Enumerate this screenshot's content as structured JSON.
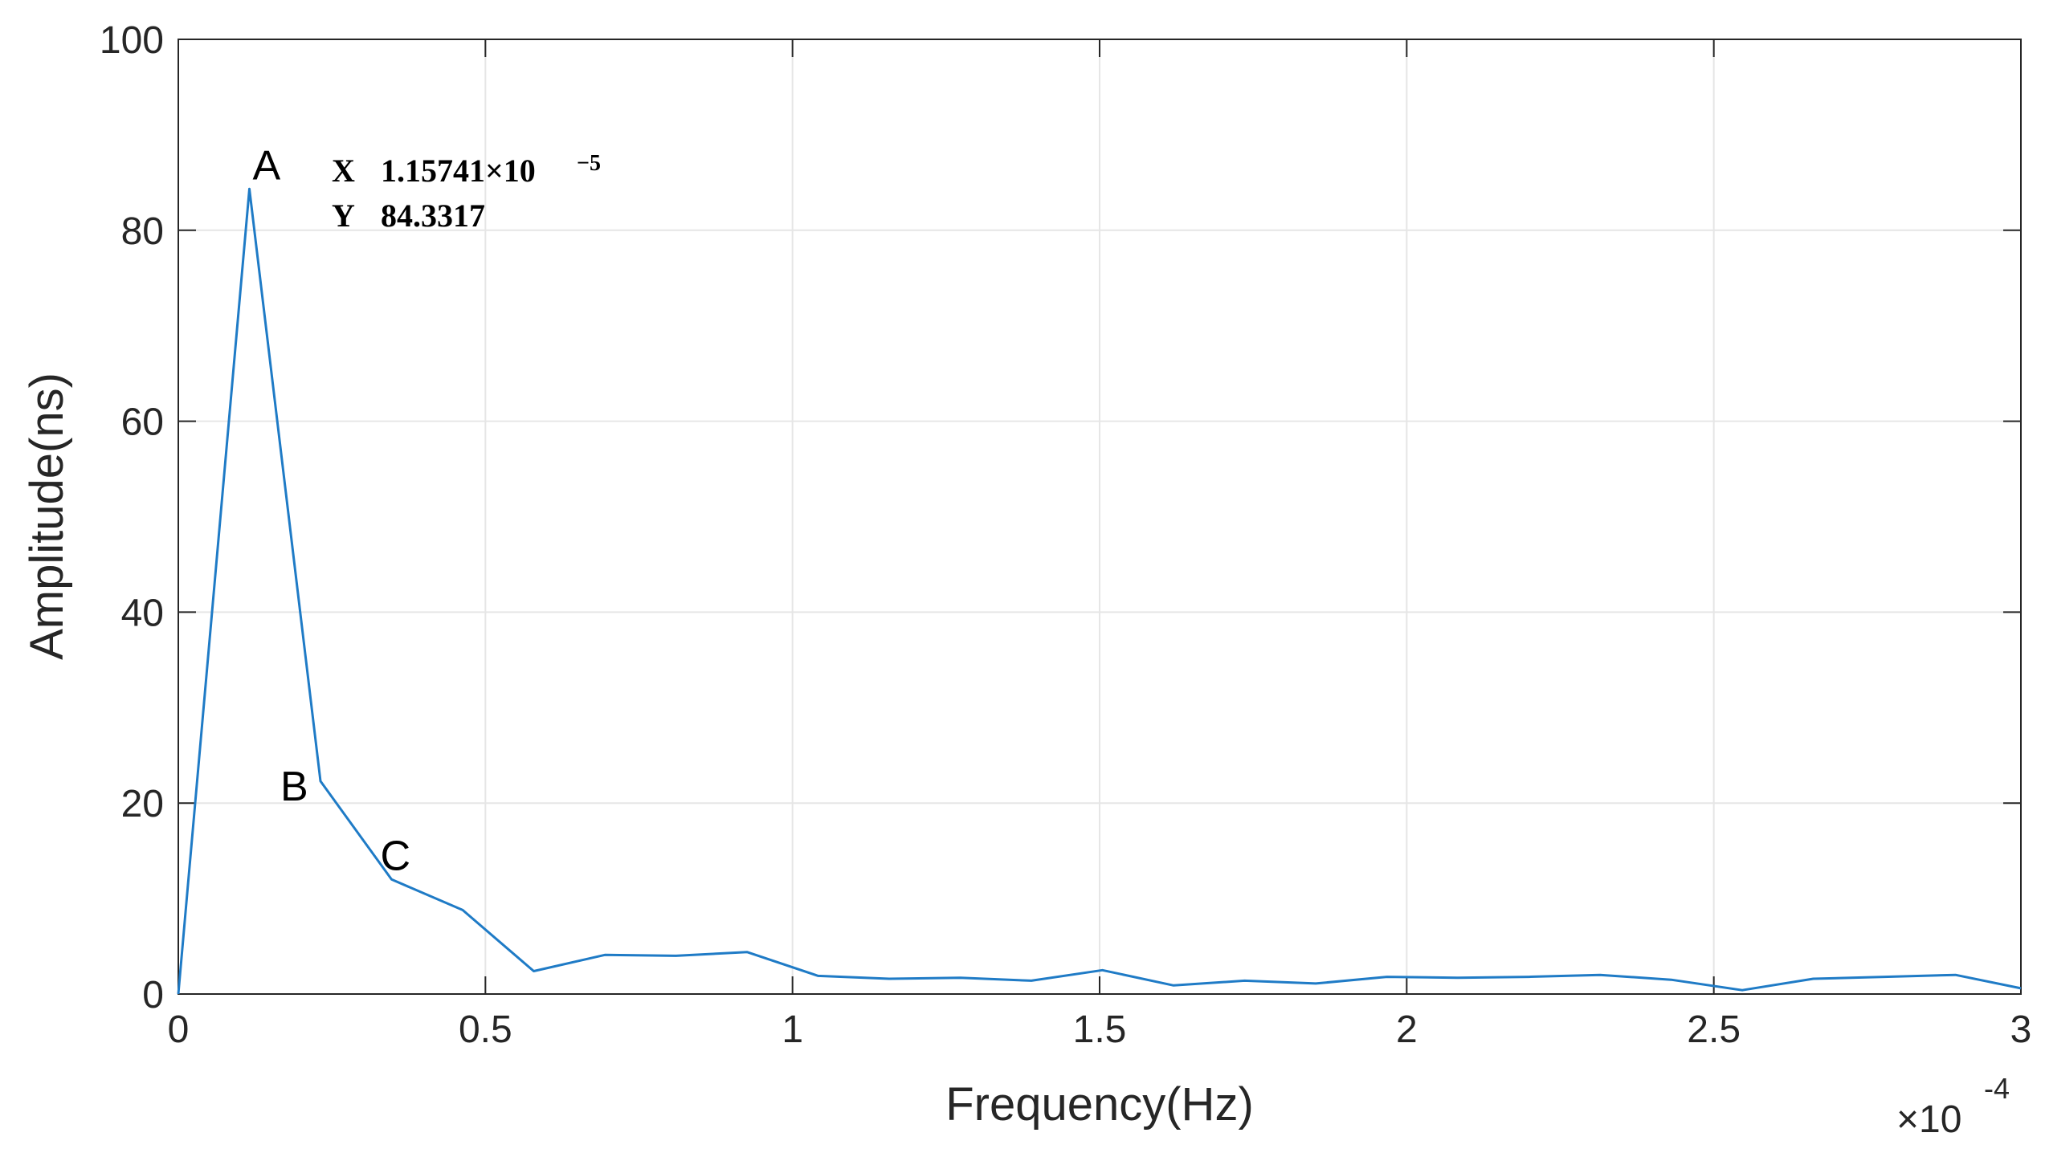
{
  "chart_data": {
    "type": "line",
    "xlabel": "Frequency(Hz)",
    "ylabel": "Amplitude(ns)",
    "x_multiplier": {
      "base": "×10",
      "exponent": "-4"
    },
    "xlim": [
      0,
      3
    ],
    "ylim": [
      0,
      100
    ],
    "grid": true,
    "x_ticks": [
      "0",
      "0.5",
      "1",
      "1.5",
      "2",
      "2.5",
      "3"
    ],
    "y_ticks": [
      "0",
      "20",
      "40",
      "60",
      "80",
      "100"
    ],
    "x_tick_values": [
      0,
      0.5,
      1,
      1.5,
      2,
      2.5,
      3
    ],
    "y_tick_values": [
      0,
      20,
      40,
      60,
      80,
      100
    ],
    "line_color": "#1f7bc6",
    "series": [
      {
        "x": [
          0,
          0.1157,
          0.2315,
          0.3472,
          0.463,
          0.5787,
          0.6944,
          0.8102,
          0.9259,
          1.0417,
          1.1574,
          1.2731,
          1.3889,
          1.5046,
          1.6204,
          1.7361,
          1.8519,
          1.9676,
          2.0833,
          2.1991,
          2.3148,
          2.4306,
          2.5463,
          2.662,
          2.7778,
          2.8935,
          3.0
        ],
        "y": [
          0,
          84.3317,
          22.3,
          12.0,
          8.8,
          2.4,
          4.1,
          4.0,
          4.4,
          1.9,
          1.6,
          1.7,
          1.4,
          2.5,
          0.9,
          1.4,
          1.1,
          1.8,
          1.7,
          1.8,
          2.0,
          1.5,
          0.4,
          1.6,
          1.8,
          2.0,
          0.6
        ]
      }
    ],
    "point_labels": [
      {
        "label": "A",
        "x": 0.1157,
        "y": 84.3317
      },
      {
        "label": "B",
        "x": 0.2315,
        "y": 22.3
      },
      {
        "label": "C",
        "x": 0.3472,
        "y": 12.0
      }
    ],
    "datatip": {
      "x_label": "X",
      "x_value": "1.15741×10",
      "x_exponent": "−5",
      "y_label": "Y",
      "y_value": "84.3317"
    }
  }
}
